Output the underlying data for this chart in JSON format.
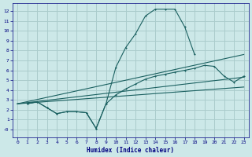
{
  "background_color": "#cce8e8",
  "grid_color": "#aacccc",
  "line_color": "#1a6060",
  "xlabel": "Humidex (Indice chaleur)",
  "xlim": [
    -0.5,
    23.5
  ],
  "ylim": [
    -0.8,
    12.8
  ],
  "xticks": [
    0,
    1,
    2,
    3,
    4,
    5,
    6,
    7,
    8,
    9,
    10,
    11,
    12,
    13,
    14,
    15,
    16,
    17,
    18,
    19,
    20,
    21,
    22,
    23
  ],
  "yticks": [
    0,
    1,
    2,
    3,
    4,
    5,
    6,
    7,
    8,
    9,
    10,
    11,
    12
  ],
  "ytick_labels": [
    "-0",
    "1",
    "2",
    "3",
    "4",
    "5",
    "6",
    "7",
    "8",
    "9",
    "10",
    "11",
    "12"
  ],
  "curve1_x": [
    1,
    2,
    3,
    4,
    5,
    6,
    7,
    8,
    9,
    10,
    11,
    12,
    13,
    14,
    15,
    16,
    17,
    18
  ],
  "curve1_y": [
    2.6,
    2.8,
    2.2,
    1.6,
    1.8,
    1.8,
    1.7,
    0.1,
    2.6,
    6.3,
    8.3,
    9.7,
    11.5,
    12.2,
    12.2,
    12.2,
    10.4,
    7.6
  ],
  "curve2_x": [
    1,
    2,
    3,
    4,
    5,
    6,
    7,
    8,
    9,
    10,
    11,
    12,
    13,
    14,
    15,
    16,
    17,
    18,
    19,
    20,
    21,
    22,
    23
  ],
  "curve2_y": [
    2.6,
    2.8,
    2.2,
    1.6,
    1.8,
    1.8,
    1.7,
    0.1,
    2.6,
    3.5,
    4.1,
    4.6,
    5.1,
    5.4,
    5.6,
    5.8,
    6.0,
    6.2,
    6.5,
    6.4,
    5.4,
    4.8,
    5.4
  ],
  "line1_x": [
    0,
    23
  ],
  "line1_y": [
    2.6,
    7.6
  ],
  "line2_x": [
    0,
    23
  ],
  "line2_y": [
    2.6,
    5.3
  ],
  "line3_x": [
    0,
    23
  ],
  "line3_y": [
    2.6,
    4.3
  ]
}
